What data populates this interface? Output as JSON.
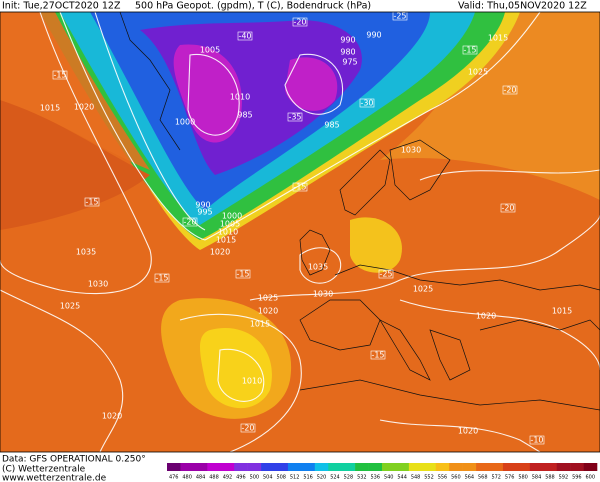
{
  "header": {
    "init": "Init: Tue,27OCT2020 12Z",
    "fields": "500 hPa Geopot. (gpdm), T (C), Bodendruck (hPa)",
    "valid": "Valid: Thu,05NOV2020 12Z"
  },
  "pressure_labels": [
    1005,
    1010,
    985,
    1000,
    990,
    980,
    975,
    985,
    990,
    1015,
    1025,
    1015,
    1020,
    1030,
    990,
    995,
    1000,
    1005,
    1010,
    1015,
    1020,
    1035,
    1030,
    1025,
    1035,
    1030,
    1025,
    1020,
    1015,
    1025,
    1020,
    1015,
    1010,
    1020,
    1020
  ],
  "temperature_labels": [
    -15,
    -20,
    -25,
    -15,
    -20,
    -30,
    -35,
    -40,
    -15,
    -15,
    -20,
    -25,
    -15,
    -15,
    -15,
    -20,
    -10,
    -20
  ],
  "footer": {
    "data": "Data: GFS OPERATIONAL 0.250°",
    "copyright": "(C) Wetterzentrale",
    "url": "www.wetterzentrale.de"
  },
  "colorbar": {
    "ticks": [
      476,
      480,
      484,
      488,
      492,
      496,
      500,
      504,
      508,
      512,
      516,
      520,
      524,
      528,
      532,
      536,
      540,
      544,
      548,
      552,
      556,
      560,
      564,
      568,
      572,
      576,
      580,
      584,
      588,
      592,
      596,
      600
    ]
  }
}
